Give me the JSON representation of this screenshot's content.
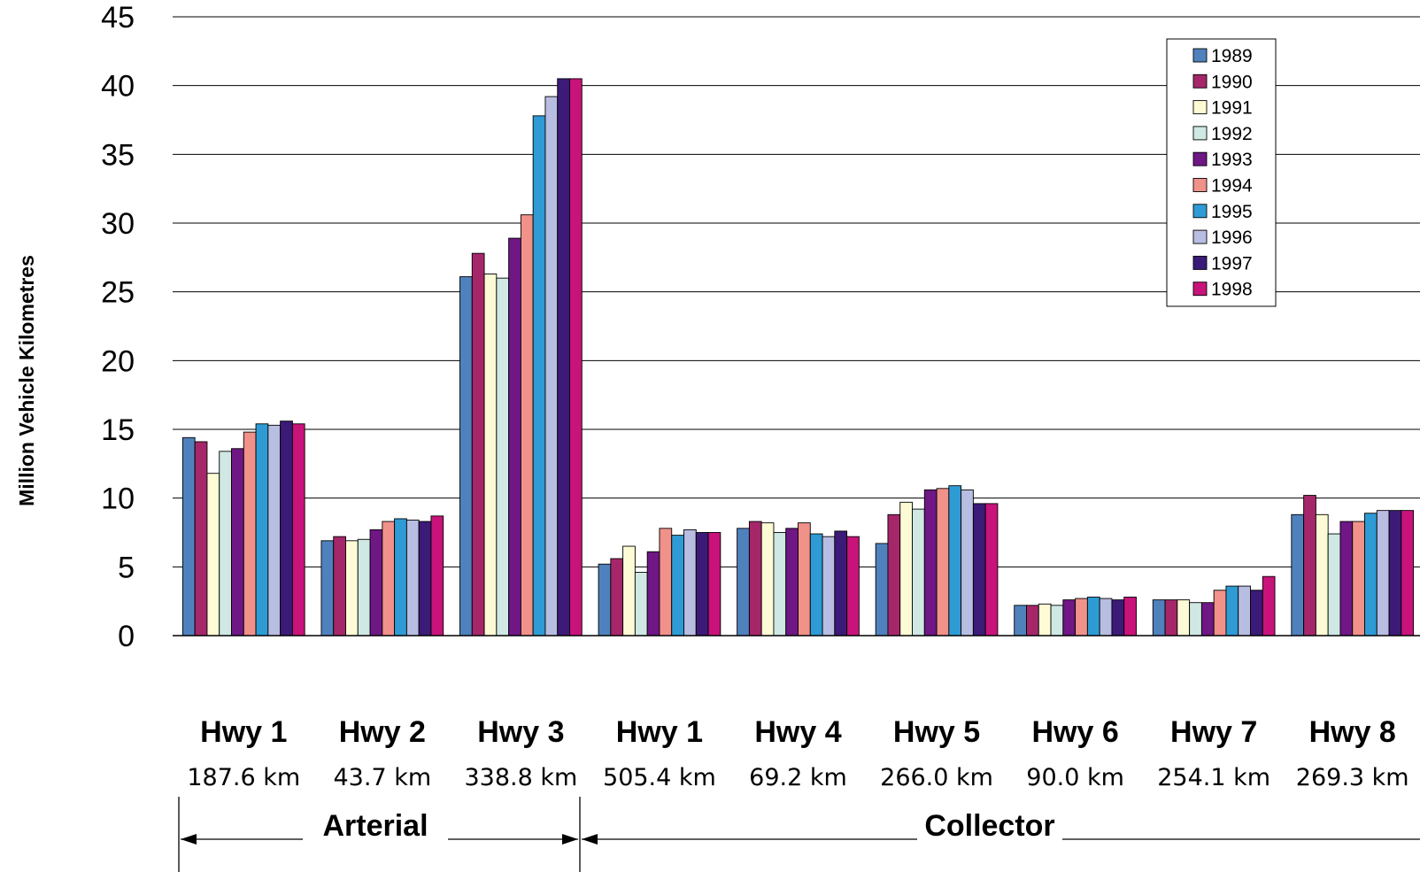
{
  "chart_data": {
    "type": "bar",
    "title": "",
    "xlabel": "",
    "ylabel": "Million Vehicle Kilometres",
    "ylim": [
      0,
      45
    ],
    "yticks": [
      0,
      5,
      10,
      15,
      20,
      25,
      30,
      35,
      40,
      45
    ],
    "grid": true,
    "legend_position": "top-right",
    "categories": [
      {
        "name": "Hwy 1",
        "length": "187.6 km"
      },
      {
        "name": "Hwy 2",
        "length": "43.7 km"
      },
      {
        "name": "Hwy 3",
        "length": "338.8 km"
      },
      {
        "name": "Hwy 1",
        "length": "505.4 km"
      },
      {
        "name": "Hwy 4",
        "length": "69.2 km"
      },
      {
        "name": "Hwy 5",
        "length": "266.0 km"
      },
      {
        "name": "Hwy 6",
        "length": "90.0 km"
      },
      {
        "name": "Hwy 7",
        "length": "254.1 km"
      },
      {
        "name": "Hwy 8",
        "length": "269.3 km"
      }
    ],
    "groups": [
      {
        "label": "Arterial",
        "categories": [
          0,
          1,
          2
        ]
      },
      {
        "label": "Collector",
        "categories": [
          3,
          4,
          5,
          6,
          7,
          8
        ]
      }
    ],
    "series": [
      {
        "name": "1989",
        "color": "#4f81bd",
        "values": [
          14.4,
          6.9,
          26.1,
          5.2,
          7.8,
          6.7,
          2.2,
          2.6,
          8.8
        ]
      },
      {
        "name": "1990",
        "color": "#a5276a",
        "values": [
          14.1,
          7.2,
          27.8,
          5.6,
          8.3,
          8.8,
          2.2,
          2.6,
          10.2
        ]
      },
      {
        "name": "1991",
        "color": "#fdfbd5",
        "values": [
          11.8,
          6.9,
          26.3,
          6.5,
          8.2,
          9.7,
          2.3,
          2.6,
          8.8
        ]
      },
      {
        "name": "1992",
        "color": "#cfe8e4",
        "values": [
          13.4,
          7.0,
          26.0,
          4.6,
          7.5,
          9.2,
          2.2,
          2.4,
          7.4
        ]
      },
      {
        "name": "1993",
        "color": "#6e1785",
        "values": [
          13.6,
          7.7,
          28.9,
          6.1,
          7.8,
          10.6,
          2.6,
          2.4,
          8.3
        ]
      },
      {
        "name": "1994",
        "color": "#f0918a",
        "values": [
          14.8,
          8.3,
          30.6,
          7.8,
          8.2,
          10.7,
          2.7,
          3.3,
          8.3
        ]
      },
      {
        "name": "1995",
        "color": "#2e9bd4",
        "values": [
          15.4,
          8.5,
          37.8,
          7.3,
          7.4,
          10.9,
          2.8,
          3.6,
          8.9
        ]
      },
      {
        "name": "1996",
        "color": "#b8bde2",
        "values": [
          15.3,
          8.4,
          39.2,
          7.7,
          7.2,
          10.6,
          2.7,
          3.6,
          9.1
        ]
      },
      {
        "name": "1997",
        "color": "#3b1a78",
        "values": [
          15.6,
          8.3,
          40.5,
          7.5,
          7.6,
          9.6,
          2.6,
          3.3,
          9.1
        ]
      },
      {
        "name": "1998",
        "color": "#c8137a",
        "values": [
          15.4,
          8.7,
          40.5,
          7.5,
          7.2,
          9.6,
          2.8,
          4.3,
          9.1
        ]
      }
    ]
  }
}
